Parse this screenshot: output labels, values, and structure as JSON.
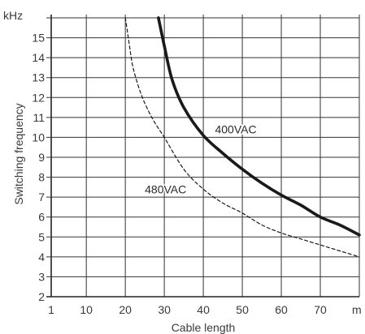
{
  "chart_data": {
    "type": "line",
    "title": "",
    "xlabel": "Cable length",
    "ylabel": "Switching frequency",
    "x_unit": "m",
    "y_unit": "kHz",
    "xlim": [
      1,
      80
    ],
    "ylim": [
      2,
      16
    ],
    "x_ticks": [
      1,
      10,
      20,
      30,
      40,
      50,
      60,
      70
    ],
    "y_ticks": [
      2,
      3,
      4,
      5,
      6,
      7,
      8,
      9,
      10,
      11,
      12,
      13,
      14,
      15
    ],
    "grid": true,
    "legend": "none",
    "series": [
      {
        "name": "400VAC",
        "style": "solid-thick",
        "color": "#1a1a1a",
        "x": [
          28.5,
          30,
          32,
          35,
          40,
          45,
          50,
          55,
          60,
          65,
          70,
          75,
          80
        ],
        "y": [
          16,
          14.6,
          12.9,
          11.5,
          10.1,
          9.2,
          8.4,
          7.7,
          7.1,
          6.6,
          6.0,
          5.6,
          5.1
        ]
      },
      {
        "name": "480VAC",
        "style": "dashed-thin",
        "color": "#1a1a1a",
        "x": [
          20,
          21,
          22,
          24,
          26,
          28,
          30,
          35,
          40,
          45,
          50,
          55,
          60,
          65,
          70,
          75,
          80
        ],
        "y": [
          16,
          14.7,
          13.5,
          12.2,
          11.3,
          10.6,
          10.0,
          8.4,
          7.4,
          6.7,
          6.2,
          5.6,
          5.2,
          4.9,
          4.6,
          4.3,
          4.0
        ]
      }
    ],
    "annotations": [
      {
        "text": "400VAC",
        "x": 43,
        "y": 10.4
      },
      {
        "text": "480VAC",
        "x": 25,
        "y": 7.4
      }
    ]
  }
}
